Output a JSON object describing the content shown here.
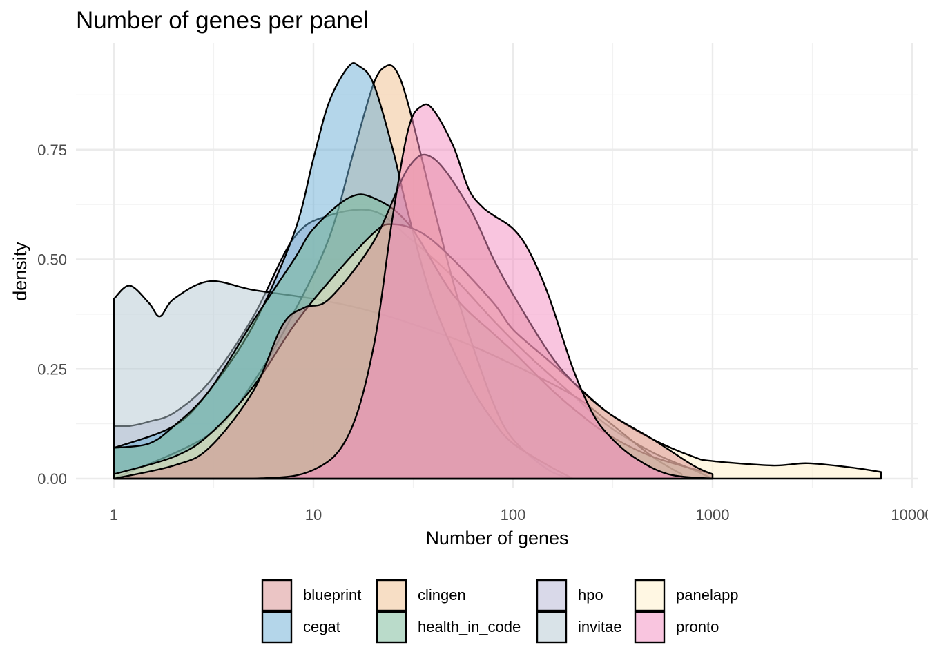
{
  "chart_data": {
    "type": "area",
    "title": "Number of genes per panel",
    "xlabel": "Number of genes",
    "ylabel": "density",
    "x_scale": "log10",
    "xlim": [
      1,
      10000
    ],
    "ylim": [
      0,
      0.95
    ],
    "x_ticks": [
      1,
      10,
      100,
      1000,
      10000
    ],
    "x_tick_labels": [
      "1",
      "10",
      "100",
      "1000",
      "10000"
    ],
    "y_ticks": [
      0,
      0.25,
      0.5,
      0.75
    ],
    "y_tick_labels": [
      "0.00",
      "0.25",
      "0.50",
      "0.75"
    ],
    "grid": true,
    "legend_position": "bottom",
    "series": [
      {
        "name": "hpo",
        "color": "#b4b4d4",
        "x": [
          1,
          1.2,
          1.5,
          2,
          3,
          5,
          8,
          12,
          20,
          30,
          50,
          80,
          120,
          200,
          300,
          500,
          800,
          1000
        ],
        "y": [
          0.12,
          0.12,
          0.13,
          0.15,
          0.22,
          0.37,
          0.55,
          0.6,
          0.61,
          0.55,
          0.46,
          0.36,
          0.28,
          0.19,
          0.12,
          0.06,
          0.02,
          0.0
        ]
      },
      {
        "name": "invitae",
        "color": "#b4c8d2",
        "x": [
          1,
          1.2,
          1.5,
          1.7,
          2,
          3,
          5,
          10,
          20,
          50,
          100,
          200,
          300,
          500,
          700
        ],
        "y": [
          0.41,
          0.44,
          0.4,
          0.37,
          0.41,
          0.45,
          0.43,
          0.41,
          0.38,
          0.32,
          0.26,
          0.19,
          0.13,
          0.05,
          0.01
        ]
      },
      {
        "name": "clingen",
        "color": "#f0be8c",
        "x": [
          1,
          3,
          5,
          8,
          12,
          16,
          20,
          23,
          26,
          30,
          40,
          50,
          60,
          80,
          100,
          150,
          200
        ],
        "y": [
          0.0,
          0.1,
          0.22,
          0.38,
          0.55,
          0.75,
          0.9,
          0.94,
          0.93,
          0.85,
          0.62,
          0.45,
          0.33,
          0.17,
          0.09,
          0.02,
          0.0
        ]
      },
      {
        "name": "cegat",
        "color": "#6aaed6",
        "x": [
          1,
          2,
          3,
          5,
          8,
          10,
          12,
          15,
          17,
          20,
          25,
          30,
          40,
          60,
          80,
          100,
          150,
          200
        ],
        "y": [
          0.07,
          0.12,
          0.2,
          0.35,
          0.56,
          0.73,
          0.86,
          0.94,
          0.94,
          0.9,
          0.75,
          0.6,
          0.4,
          0.22,
          0.13,
          0.08,
          0.03,
          0.0
        ]
      },
      {
        "name": "health_in_code",
        "color": "#76b795",
        "x": [
          1,
          1.5,
          2,
          3,
          5,
          8,
          10,
          15,
          20,
          30,
          50,
          80,
          100,
          150,
          200,
          300,
          500,
          1000
        ],
        "y": [
          0.07,
          0.08,
          0.12,
          0.2,
          0.36,
          0.5,
          0.57,
          0.64,
          0.64,
          0.58,
          0.42,
          0.33,
          0.29,
          0.21,
          0.16,
          0.1,
          0.05,
          0.01
        ]
      },
      {
        "name": "panelapp",
        "color": "#fff0c8",
        "x": [
          1,
          2,
          3,
          5,
          8,
          12,
          20,
          25,
          35,
          50,
          80,
          100,
          150,
          200,
          300,
          500,
          800,
          1000,
          2000,
          3000,
          5000,
          7000
        ],
        "y": [
          0.01,
          0.05,
          0.1,
          0.21,
          0.35,
          0.45,
          0.56,
          0.58,
          0.56,
          0.5,
          0.4,
          0.34,
          0.27,
          0.22,
          0.15,
          0.09,
          0.05,
          0.04,
          0.03,
          0.035,
          0.025,
          0.015
        ]
      },
      {
        "name": "blueprint",
        "color": "#d78c8c",
        "x": [
          1,
          2,
          3,
          5,
          7,
          9,
          12,
          20,
          30,
          40,
          60,
          80,
          100,
          150,
          200,
          300,
          500,
          800,
          1000
        ],
        "y": [
          0.0,
          0.03,
          0.07,
          0.2,
          0.35,
          0.39,
          0.41,
          0.54,
          0.71,
          0.73,
          0.62,
          0.5,
          0.42,
          0.29,
          0.22,
          0.15,
          0.09,
          0.03,
          0.01
        ]
      },
      {
        "name": "pronto",
        "color": "#f48cc0",
        "x": [
          1,
          5,
          10,
          15,
          20,
          25,
          30,
          35,
          40,
          50,
          60,
          70,
          80,
          100,
          120,
          150,
          200,
          250,
          300,
          400,
          600,
          1000
        ],
        "y": [
          0.0,
          0.0,
          0.02,
          0.1,
          0.3,
          0.6,
          0.8,
          0.85,
          0.84,
          0.76,
          0.66,
          0.62,
          0.6,
          0.57,
          0.52,
          0.42,
          0.25,
          0.15,
          0.1,
          0.05,
          0.01,
          0.0
        ]
      }
    ],
    "legend": [
      "blueprint",
      "cegat",
      "clingen",
      "health_in_code",
      "hpo",
      "invitae",
      "panelapp",
      "pronto"
    ]
  }
}
